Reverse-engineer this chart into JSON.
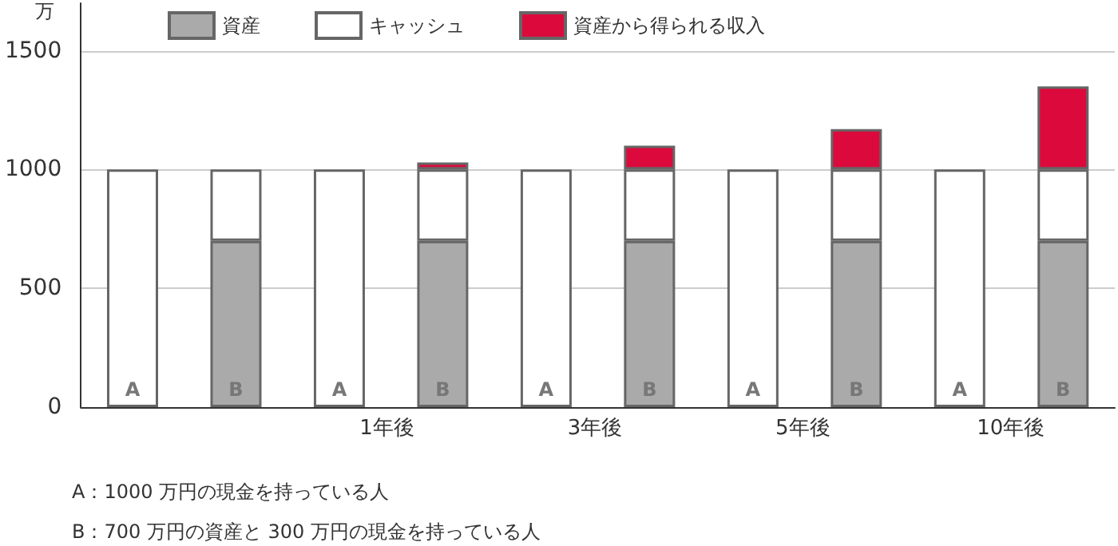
{
  "chart_data": {
    "type": "bar",
    "ylabel": "万",
    "categories": [
      "A",
      "B",
      "A",
      "B",
      "A",
      "B",
      "A",
      "B",
      "A",
      "B"
    ],
    "stacked": true,
    "series": [
      {
        "name": "資産",
        "color": "#aaaaaa",
        "values": [
          null,
          700,
          null,
          700,
          null,
          700,
          null,
          700,
          null,
          700
        ]
      },
      {
        "name": "キャッシュ",
        "color": "#ffffff",
        "values": [
          1000,
          300,
          1000,
          300,
          1000,
          300,
          1000,
          300,
          1000,
          300
        ]
      },
      {
        "name": "資産から得られる収入",
        "color": "#dc0a3c",
        "values": [
          null,
          null,
          null,
          30,
          null,
          100,
          null,
          170,
          null,
          350
        ]
      }
    ],
    "ylim": [
      0,
      1700
    ],
    "yticks": [
      0,
      500,
      1000,
      1500
    ],
    "grid": "y",
    "legend": "top left",
    "annotations": [
      "1年後",
      "3年後",
      "5年後",
      "10年後",
      "A：1000 万円の現金を持っている人",
      "B：700 万円の資産と 300 万円の現金を持っている人"
    ]
  }
}
